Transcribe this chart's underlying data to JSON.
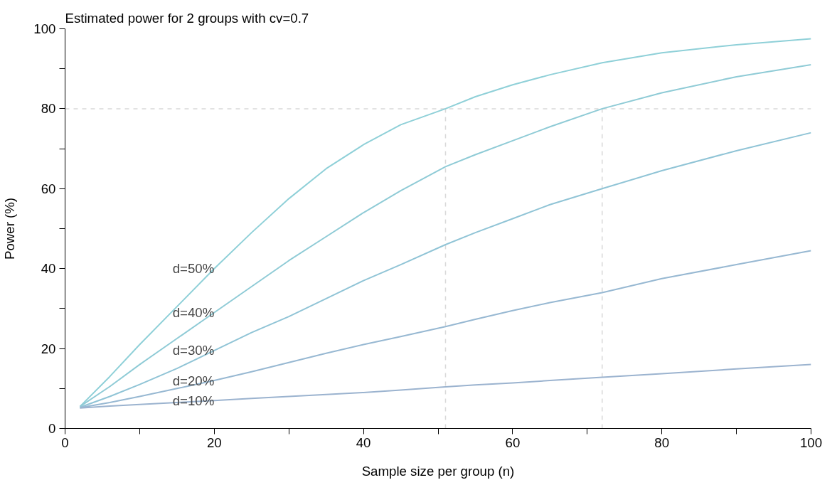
{
  "chart_data": {
    "type": "line",
    "title": "Estimated power for 2 groups with cv=0.7",
    "xlabel": "Sample size per group (n)",
    "ylabel": "Power (%)",
    "x": [
      2,
      6,
      10,
      15,
      20,
      25,
      30,
      35,
      40,
      45,
      51,
      55,
      60,
      65,
      72,
      80,
      90,
      100
    ],
    "series": [
      {
        "name": "d=50%",
        "color": "#8fd0d8",
        "values": [
          5.5,
          13,
          21,
          30.5,
          40,
          49,
          57.5,
          65,
          71,
          76,
          80,
          83,
          86,
          88.5,
          91.5,
          94,
          96,
          97.5
        ]
      },
      {
        "name": "d=40%",
        "color": "#8fcbd6",
        "values": [
          5.5,
          10.5,
          16,
          22.5,
          29,
          35.5,
          42,
          48,
          54,
          59.5,
          65.5,
          68.5,
          72,
          75.5,
          80,
          84,
          88,
          91
        ]
      },
      {
        "name": "d=30%",
        "color": "#90c4d6",
        "values": [
          5.3,
          8,
          11,
          15,
          19.5,
          24,
          28,
          32.5,
          37,
          41,
          46,
          49,
          52.5,
          56,
          60,
          64.5,
          69.5,
          74
        ]
      },
      {
        "name": "d=20%",
        "color": "#97b8d2",
        "values": [
          5.2,
          6.5,
          8,
          10,
          12,
          14.2,
          16.5,
          18.8,
          21,
          23,
          25.5,
          27.3,
          29.5,
          31.5,
          34,
          37.5,
          41,
          44.5
        ]
      },
      {
        "name": "d=10%",
        "color": "#9bb3cf",
        "values": [
          5.1,
          5.6,
          6,
          6.5,
          7,
          7.5,
          8,
          8.5,
          9,
          9.6,
          10.4,
          10.9,
          11.4,
          12,
          12.8,
          13.7,
          14.9,
          16
        ]
      }
    ],
    "xlim": [
      0,
      100
    ],
    "ylim": [
      0,
      100
    ],
    "xticks": [
      0,
      {
        "value": 10,
        "label": null
      },
      20,
      {
        "value": 30,
        "label": null
      },
      40,
      {
        "value": 50,
        "label": null
      },
      60,
      {
        "value": 70,
        "label": null
      },
      80,
      {
        "value": 90,
        "label": null
      },
      100
    ],
    "yticks": [
      0,
      {
        "value": 10,
        "label": null
      },
      20,
      {
        "value": 30,
        "label": null
      },
      40,
      {
        "value": 50,
        "label": null
      },
      60,
      {
        "value": 70,
        "label": null
      },
      80,
      {
        "value": 90,
        "label": null
      },
      100
    ],
    "ref_lines": [
      {
        "axis": "y",
        "value": 80,
        "color": "#d9d9d9",
        "line_style": "dashed"
      },
      {
        "axis": "x",
        "value": 51,
        "color": "#d9d9d9",
        "line_style": "dashed"
      },
      {
        "axis": "x",
        "value": 72,
        "color": "#d9d9d9",
        "line_style": "dashed"
      }
    ],
    "grid": false,
    "marker": "none",
    "line_style": "solid"
  }
}
